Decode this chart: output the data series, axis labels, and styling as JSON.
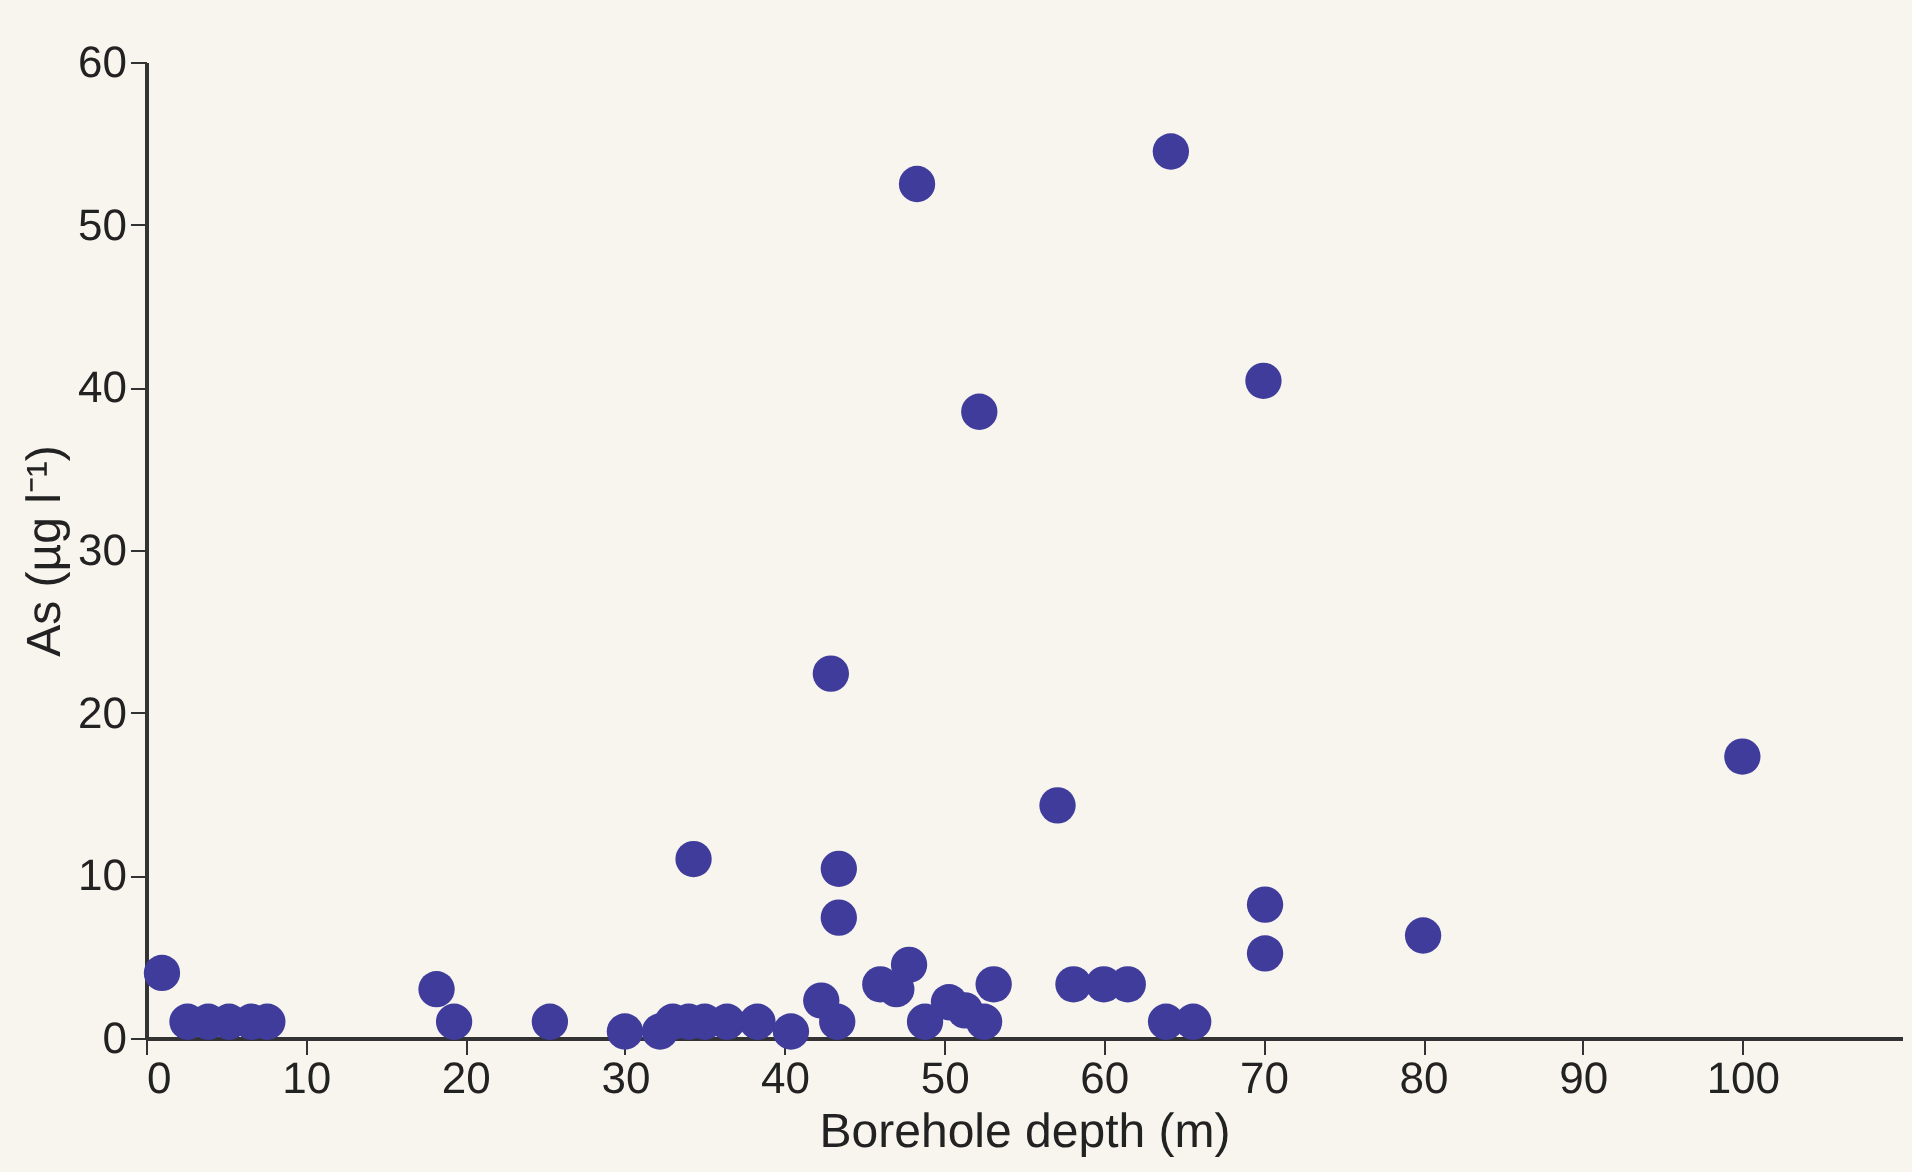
{
  "chart_data": {
    "type": "scatter",
    "xlabel": "Borehole depth (m)",
    "ylabel": "As (µg l⁻¹)",
    "xlim": [
      0,
      110
    ],
    "xticks": [
      0,
      10,
      20,
      30,
      40,
      50,
      60,
      70,
      80,
      90,
      100
    ],
    "ylim": [
      0,
      60
    ],
    "yticks": [
      0,
      10,
      20,
      30,
      40,
      50,
      60
    ],
    "grid": false,
    "marker": "circle",
    "series": [
      {
        "color": "#3f3c9c",
        "x": [
          1,
          2.6,
          3.9,
          5.2,
          6.6,
          7.6,
          18.2,
          19.3,
          25.3,
          30,
          32.2,
          33,
          34.3,
          34,
          35,
          36.4,
          38.3,
          40.4,
          42.3,
          42.9,
          43.4,
          43.4,
          43.3,
          46,
          47,
          47.8,
          48.3,
          48.8,
          50.3,
          51.3,
          52.2,
          52.5,
          53.1,
          57.1,
          58.1,
          60,
          61.5,
          63.9,
          64.2,
          65.6,
          70,
          70.1,
          70.1,
          80,
          100
        ],
        "values": [
          4,
          1,
          1,
          1,
          1,
          1,
          3,
          1,
          1,
          0.4,
          0.4,
          1,
          11,
          1,
          1,
          1,
          1,
          0.4,
          2.3,
          22.4,
          10.4,
          7.4,
          1,
          3.3,
          3,
          4.5,
          52.5,
          1,
          2.2,
          1.7,
          38.5,
          1,
          3.3,
          14.3,
          3.3,
          3.3,
          3.3,
          1,
          54.5,
          1,
          40.4,
          8.2,
          5.2,
          6.3,
          17.3
        ]
      }
    ]
  }
}
